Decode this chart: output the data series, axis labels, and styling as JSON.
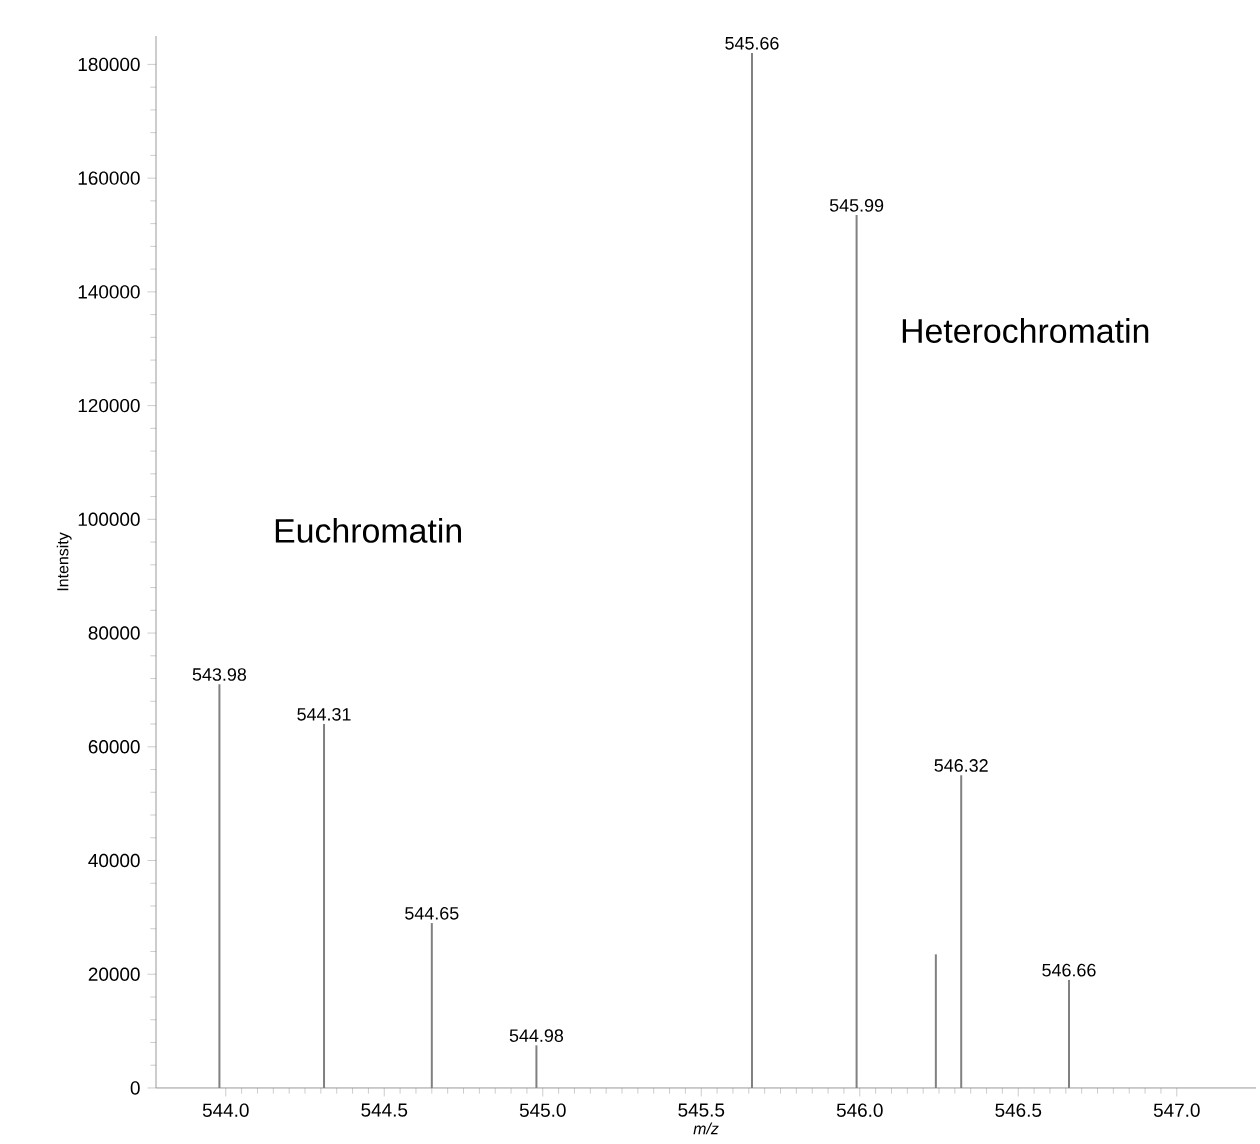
{
  "chart_data": {
    "type": "bar",
    "xlabel": "*m/z*",
    "ylabel": "Intensity",
    "x": [
      543.98,
      544.31,
      544.65,
      544.98,
      545.66,
      545.99,
      546.24,
      546.32,
      546.66
    ],
    "values": [
      71000,
      64000,
      29000,
      7500,
      182000,
      153500,
      23500,
      55000,
      19000
    ],
    "color": "#808080",
    "xlim": [
      543.78,
      547.25
    ],
    "ylim": [
      0,
      185000
    ],
    "xticks": [
      {
        "value": 544.0,
        "label": "544.0"
      },
      {
        "value": 544.5,
        "label": "544.5"
      },
      {
        "value": 545.0,
        "label": "545.0"
      },
      {
        "value": 545.5,
        "label": "545.5"
      },
      {
        "value": 546.0,
        "label": "546.0"
      },
      {
        "value": 546.5,
        "label": "546.5"
      },
      {
        "value": 547.0,
        "label": "547.0"
      }
    ],
    "yticks": [
      0,
      20000,
      40000,
      60000,
      80000,
      100000,
      120000,
      140000,
      160000,
      180000
    ],
    "annotations": [
      "Euchromatin",
      "Heterochromatin",
      {
        "text": "543.98",
        "x": 543.98,
        "y": 71000
      },
      {
        "text": "544.31",
        "x": 544.31,
        "y": 64000
      },
      {
        "text": "544.65",
        "x": 544.65,
        "y": 29000
      },
      {
        "text": "544.98",
        "x": 544.98,
        "y": 7500
      },
      {
        "text": "545.66",
        "x": 545.66,
        "y": 182000
      },
      {
        "text": "545.99",
        "x": 545.99,
        "y": 153500
      },
      {
        "text": "546.32",
        "x": 546.32,
        "y": 55000
      },
      {
        "text": "546.66",
        "x": 546.66,
        "y": 19000
      }
    ]
  }
}
